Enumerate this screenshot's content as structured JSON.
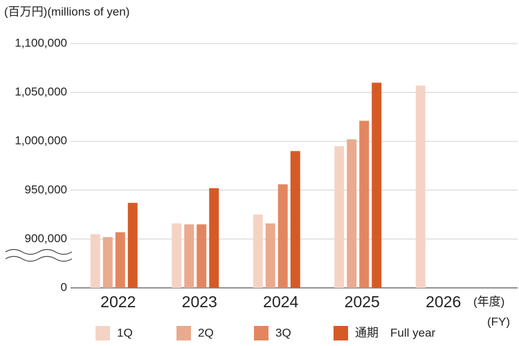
{
  "chart_data": {
    "type": "bar",
    "y_axis_label": "(百万円)(millions of yen)",
    "x_axis_label": "(年度)",
    "x_axis_label_en": "(FY)",
    "categories": [
      "2022",
      "2023",
      "2024",
      "2025",
      "2026"
    ],
    "series": [
      {
        "name": "1Q",
        "color": "#f5d3c4",
        "values": [
          905000,
          916000,
          925000,
          995000,
          1057000
        ]
      },
      {
        "name": "2Q",
        "color": "#eaaa8e",
        "values": [
          902000,
          915000,
          916000,
          1002000,
          null
        ]
      },
      {
        "name": "3Q",
        "color": "#e3865f",
        "values": [
          907000,
          915000,
          956000,
          1021000,
          null
        ]
      },
      {
        "name": "通期　Full year",
        "color": "#d65a26",
        "values": [
          937000,
          952000,
          990000,
          1060000,
          null
        ]
      }
    ],
    "ylim": [
      850000,
      1100000
    ],
    "yticks": [
      0,
      {
        "value": 900000,
        "label": "900,000"
      },
      {
        "value": 950000,
        "label": "950,000"
      },
      {
        "value": 1000000,
        "label": "1,000,000"
      },
      {
        "value": 1050000,
        "label": "1,050,000"
      },
      {
        "value": 1100000,
        "label": "1,100,000"
      }
    ],
    "axis_break": true,
    "grid": true
  }
}
